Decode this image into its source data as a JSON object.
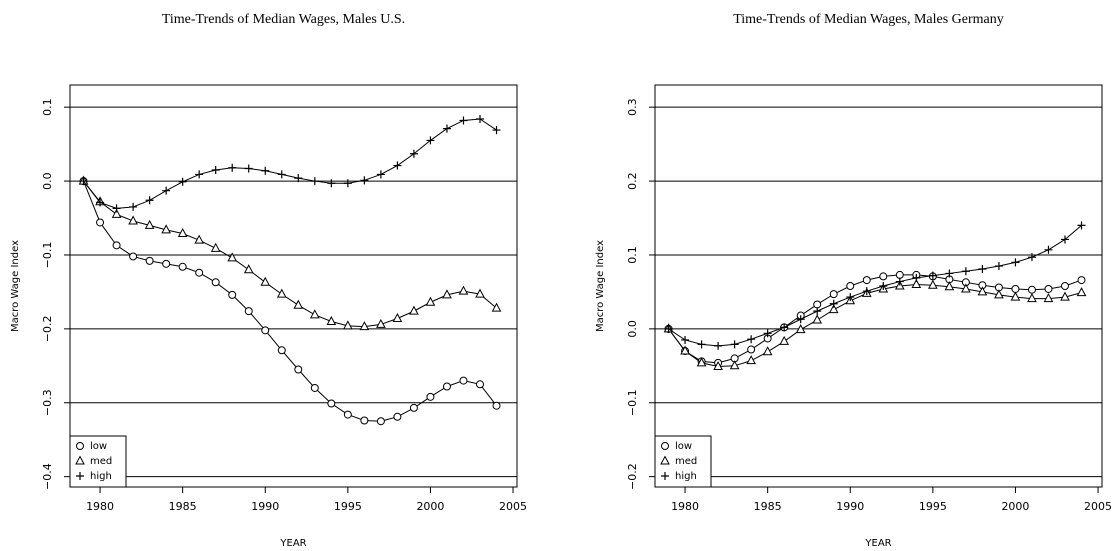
{
  "chart_data": [
    {
      "type": "line",
      "title": "Time-Trends of Median Wages, Males U.S.",
      "x_label": "YEAR",
      "y_label": "Macro Wage Index",
      "x": [
        1979,
        1980,
        1981,
        1982,
        1983,
        1984,
        1985,
        1986,
        1987,
        1988,
        1989,
        1990,
        1991,
        1992,
        1993,
        1994,
        1995,
        1996,
        1997,
        1998,
        1999,
        2000,
        2001,
        2002,
        2003,
        2004
      ],
      "series": [
        {
          "name": "low",
          "marker": "circle",
          "color": "#000000",
          "values": [
            0,
            -0.056,
            -0.087,
            -0.102,
            -0.108,
            -0.112,
            -0.116,
            -0.124,
            -0.137,
            -0.154,
            -0.176,
            -0.202,
            -0.229,
            -0.255,
            -0.28,
            -0.301,
            -0.316,
            -0.324,
            -0.325,
            -0.319,
            -0.307,
            -0.292,
            -0.278,
            -0.27,
            -0.275,
            -0.304
          ]
        },
        {
          "name": "med",
          "marker": "triangle",
          "color": "#000000",
          "values": [
            0,
            -0.028,
            -0.045,
            -0.054,
            -0.06,
            -0.066,
            -0.071,
            -0.08,
            -0.091,
            -0.104,
            -0.12,
            -0.137,
            -0.153,
            -0.168,
            -0.181,
            -0.19,
            -0.196,
            -0.197,
            -0.194,
            -0.186,
            -0.176,
            -0.164,
            -0.154,
            -0.149,
            -0.153,
            -0.172
          ]
        },
        {
          "name": "high",
          "marker": "plus",
          "color": "#000000",
          "values": [
            0,
            -0.029,
            -0.037,
            -0.035,
            -0.026,
            -0.013,
            -0.001,
            0.009,
            0.015,
            0.018,
            0.017,
            0.014,
            0.009,
            0.004,
            0,
            -0.003,
            -0.003,
            0.001,
            0.009,
            0.021,
            0.037,
            0.055,
            0.071,
            0.082,
            0.084,
            0.069
          ]
        }
      ],
      "xlim": [
        1978.18,
        2005.24
      ],
      "xticks": [
        1980,
        1985,
        1990,
        1995,
        2000,
        2005
      ],
      "ylim": [
        -0.414,
        0.13
      ],
      "yticks": [
        {
          "value": -0.4,
          "label": "−0.4"
        },
        {
          "value": -0.3,
          "label": "−0.3"
        },
        {
          "value": -0.2,
          "label": "−0.2"
        },
        {
          "value": -0.1,
          "label": "−0.1"
        },
        {
          "value": 0,
          "label": "0.0"
        },
        {
          "value": 0.1,
          "label": "0.1"
        }
      ],
      "grid": true,
      "legend": "bottom-left"
    },
    {
      "type": "line",
      "title": "Time-Trends of Median Wages, Males Germany",
      "x_label": "YEAR",
      "y_label": "Macro Wage Index",
      "x": [
        1979,
        1980,
        1981,
        1982,
        1983,
        1984,
        1985,
        1986,
        1987,
        1988,
        1989,
        1990,
        1991,
        1992,
        1993,
        1994,
        1995,
        1996,
        1997,
        1998,
        1999,
        2000,
        2001,
        2002,
        2003,
        2004
      ],
      "series": [
        {
          "name": "low",
          "marker": "circle",
          "color": "#000000",
          "values": [
            0,
            -0.03,
            -0.044,
            -0.046,
            -0.04,
            -0.028,
            -0.013,
            0.002,
            0.018,
            0.033,
            0.047,
            0.058,
            0.066,
            0.071,
            0.073,
            0.073,
            0.071,
            0.067,
            0.063,
            0.059,
            0.056,
            0.054,
            0.053,
            0.054,
            0.058,
            0.066
          ]
        },
        {
          "name": "med",
          "marker": "triangle",
          "color": "#000000",
          "values": [
            0,
            -0.03,
            -0.046,
            -0.051,
            -0.05,
            -0.043,
            -0.031,
            -0.017,
            -0.001,
            0.012,
            0.026,
            0.038,
            0.048,
            0.054,
            0.058,
            0.06,
            0.059,
            0.057,
            0.054,
            0.05,
            0.046,
            0.043,
            0.041,
            0.041,
            0.043,
            0.049
          ]
        },
        {
          "name": "high",
          "marker": "plus",
          "color": "#000000",
          "values": [
            0,
            -0.015,
            -0.021,
            -0.023,
            -0.021,
            -0.014,
            -0.006,
            0.002,
            0.013,
            0.024,
            0.034,
            0.043,
            0.051,
            0.058,
            0.064,
            0.069,
            0.072,
            0.075,
            0.078,
            0.081,
            0.085,
            0.09,
            0.097,
            0.107,
            0.121,
            0.14
          ]
        }
      ],
      "xlim": [
        1978.18,
        2005.24
      ],
      "xticks": [
        1980,
        1985,
        1990,
        1995,
        2000,
        2005
      ],
      "ylim": [
        -0.214,
        0.33
      ],
      "yticks": [
        {
          "value": -0.2,
          "label": "−0.2"
        },
        {
          "value": -0.1,
          "label": "−0.1"
        },
        {
          "value": 0,
          "label": "0.0"
        },
        {
          "value": 0.1,
          "label": "0.1"
        },
        {
          "value": 0.2,
          "label": "0.2"
        },
        {
          "value": 0.3,
          "label": "0.3"
        }
      ],
      "grid": true,
      "legend": "bottom-left"
    }
  ]
}
